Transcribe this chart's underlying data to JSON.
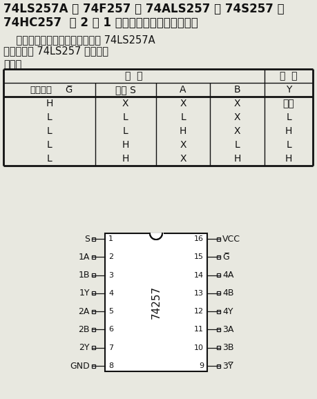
{
  "title_line1": "74LS257A 、 74F257 、 74ALS257 、 74S257 、",
  "title_line2": "74HC257  四 2 选 1 数据选择器（三态、同相）",
  "desc_line1": "    三态输出直接与系统总线接口， 74LS257A",
  "desc_line2": "吸收电流比 74LS257 大两倍。",
  "func_table_title": "功能表",
  "table_header_input": "输  入",
  "table_header_output": "输  出",
  "col_header0": "输出控制",
  "col_header0b": "G̅",
  "col_header1": "选择 S",
  "col_header2": "A",
  "col_header3": "B",
  "col_header4": "Y",
  "table_rows": [
    [
      "H",
      "X",
      "X",
      "X",
      "高阻"
    ],
    [
      "L",
      "L",
      "L",
      "X",
      "L"
    ],
    [
      "L",
      "L",
      "H",
      "X",
      "H"
    ],
    [
      "L",
      "H",
      "X",
      "L",
      "L"
    ],
    [
      "L",
      "H",
      "X",
      "H",
      "H"
    ]
  ],
  "ic_name": "74257",
  "left_pins": [
    [
      1,
      "S"
    ],
    [
      2,
      "1A"
    ],
    [
      3,
      "1B"
    ],
    [
      4,
      "1Y"
    ],
    [
      5,
      "2A"
    ],
    [
      6,
      "2B"
    ],
    [
      7,
      "2Y"
    ],
    [
      8,
      "GND"
    ]
  ],
  "right_pins": [
    [
      16,
      "VCC"
    ],
    [
      15,
      "G̅"
    ],
    [
      14,
      "4A"
    ],
    [
      13,
      "4B"
    ],
    [
      12,
      "4Y"
    ],
    [
      11,
      "3A"
    ],
    [
      10,
      "3B"
    ],
    [
      9,
      "3Y̅"
    ]
  ],
  "bg_color": "#e8e8e0",
  "text_color": "#111111",
  "table_line_color": "#111111",
  "ic_box_color": "#111111",
  "ic_fill_color": "#ffffff"
}
